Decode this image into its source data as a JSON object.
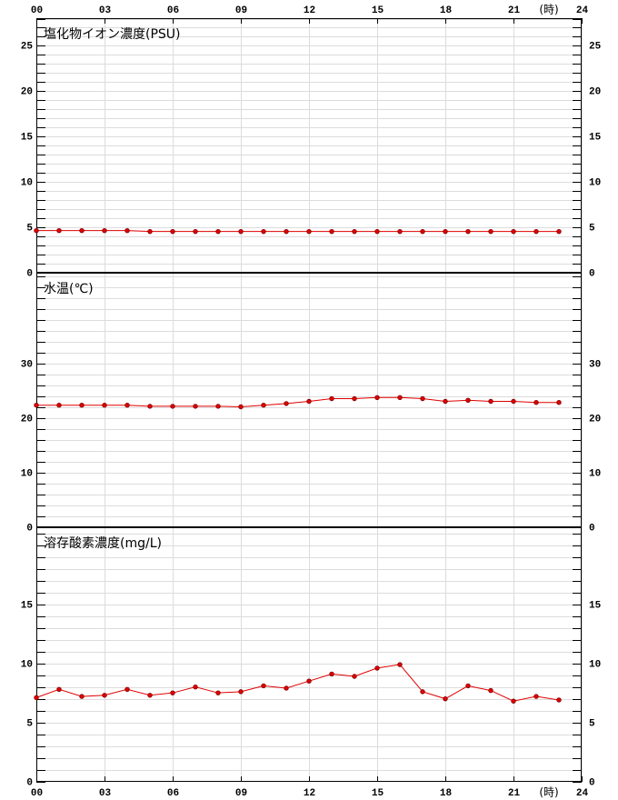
{
  "chart_data": [
    {
      "type": "line",
      "title": "塩化物イオン濃度(PSU)",
      "x_label": "(時)",
      "xlim": [
        0,
        24
      ],
      "xticks": [
        {
          "value": 0,
          "label": "00"
        },
        {
          "value": 3,
          "label": "03"
        },
        {
          "value": 6,
          "label": "06"
        },
        {
          "value": 9,
          "label": "09"
        },
        12,
        15,
        18,
        21,
        24
      ],
      "ylim": [
        0,
        28
      ],
      "yticks": [
        0,
        5,
        10,
        15,
        20,
        25
      ],
      "minor_tick_step": 1,
      "grid": true,
      "x": [
        0,
        1,
        2,
        3,
        4,
        5,
        6,
        7,
        8,
        9,
        10,
        11,
        12,
        13,
        14,
        15,
        16,
        17,
        18,
        19,
        20,
        21,
        22,
        23
      ],
      "color": "#e00000",
      "values": [
        4.6,
        4.6,
        4.6,
        4.6,
        4.6,
        4.5,
        4.5,
        4.5,
        4.5,
        4.5,
        4.5,
        4.5,
        4.5,
        4.5,
        4.5,
        4.5,
        4.5,
        4.5,
        4.5,
        4.5,
        4.5,
        4.5,
        4.5,
        4.5
      ]
    },
    {
      "type": "line",
      "title": "水温(℃)",
      "xlim": [
        0,
        24
      ],
      "xticks": [
        {
          "value": 0,
          "label": "00"
        },
        {
          "value": 3,
          "label": "03"
        },
        {
          "value": 6,
          "label": "06"
        },
        {
          "value": 9,
          "label": "09"
        },
        12,
        15,
        18,
        21,
        24
      ],
      "ylim": [
        0,
        46.5
      ],
      "yticks": [
        0,
        10,
        20,
        30
      ],
      "minor_tick_step": 2,
      "grid": true,
      "x": [
        0,
        1,
        2,
        3,
        4,
        5,
        6,
        7,
        8,
        9,
        10,
        11,
        12,
        13,
        14,
        15,
        16,
        17,
        18,
        19,
        20,
        21,
        22,
        23
      ],
      "color": "#e00000",
      "values": [
        22.3,
        22.3,
        22.3,
        22.3,
        22.3,
        22.1,
        22.1,
        22.1,
        22.1,
        22.0,
        22.3,
        22.6,
        23.0,
        23.5,
        23.5,
        23.7,
        23.7,
        23.5,
        23.0,
        23.2,
        23.0,
        23.0,
        22.8,
        22.8
      ]
    },
    {
      "type": "line",
      "title": "溶存酸素濃度(mg/L)",
      "x_label": "(時)",
      "xlim": [
        0,
        24
      ],
      "xticks": [
        {
          "value": 0,
          "label": "00"
        },
        {
          "value": 3,
          "label": "03"
        },
        {
          "value": 6,
          "label": "06"
        },
        {
          "value": 9,
          "label": "09"
        },
        12,
        15,
        18,
        21,
        24
      ],
      "ylim": [
        0,
        21.5
      ],
      "yticks": [
        0,
        5,
        10,
        15
      ],
      "minor_tick_step": 1,
      "grid": true,
      "x": [
        0,
        1,
        2,
        3,
        4,
        5,
        6,
        7,
        8,
        9,
        10,
        11,
        12,
        13,
        14,
        15,
        16,
        17,
        18,
        19,
        20,
        21,
        22,
        23
      ],
      "color": "#e00000",
      "values": [
        7.1,
        7.8,
        7.2,
        7.3,
        7.8,
        7.3,
        7.5,
        8.0,
        7.5,
        7.6,
        8.1,
        7.9,
        8.5,
        9.1,
        8.9,
        9.6,
        9.9,
        7.6,
        7.0,
        8.1,
        7.7,
        6.8,
        7.2,
        6.9
      ]
    }
  ]
}
